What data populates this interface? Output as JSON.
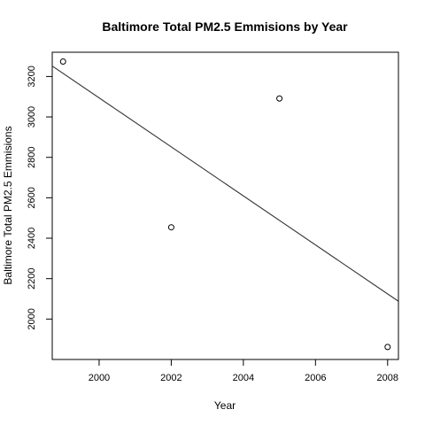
{
  "chart_data": {
    "type": "scatter",
    "title": "Baltimore Total PM2.5 Emmisions by Year",
    "xlabel": "Year",
    "ylabel": "Baltimore Total PM2.5 Emmisions",
    "xlim": [
      1998.7,
      2008.3
    ],
    "ylim": [
      1800,
      3320
    ],
    "xticks": [
      2000,
      2002,
      2004,
      2006,
      2008
    ],
    "yticks": [
      2000,
      2200,
      2400,
      2600,
      2800,
      3000,
      3200
    ],
    "grid": false,
    "series": [
      {
        "points": [
          {
            "x": 1999,
            "y": 3274
          },
          {
            "x": 2002,
            "y": 2454
          },
          {
            "x": 2005,
            "y": 3091
          },
          {
            "x": 2008,
            "y": 1862
          }
        ]
      }
    ],
    "regression_line": [
      {
        "x": 1998.7,
        "y": 3252
      },
      {
        "x": 2008.3,
        "y": 2088
      }
    ],
    "point_color": "#000000",
    "line_color": "#333333"
  }
}
